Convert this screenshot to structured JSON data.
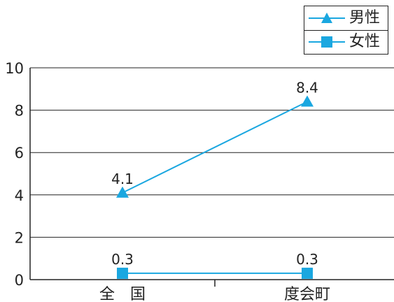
{
  "chart_data": {
    "type": "line",
    "categories": [
      "全　国",
      "度会町"
    ],
    "series": [
      {
        "name": "男性",
        "values": [
          4.1,
          8.4
        ],
        "marker": "triangle",
        "color": "#1aa7e0"
      },
      {
        "name": "女性",
        "values": [
          0.3,
          0.3
        ],
        "marker": "square",
        "color": "#1aa7e0"
      }
    ],
    "data_labels": [
      [
        "4.1",
        "8.4"
      ],
      [
        "0.3",
        "0.3"
      ]
    ],
    "yticks": [
      "0",
      "2",
      "4",
      "6",
      "8",
      "10"
    ],
    "ylim": [
      0,
      10
    ],
    "grid": true,
    "legend_position": "top-right",
    "title": "",
    "xlabel": "",
    "ylabel": ""
  },
  "legend": {
    "items": [
      {
        "label": "男性",
        "marker": "triangle"
      },
      {
        "label": "女性",
        "marker": "square"
      }
    ]
  }
}
